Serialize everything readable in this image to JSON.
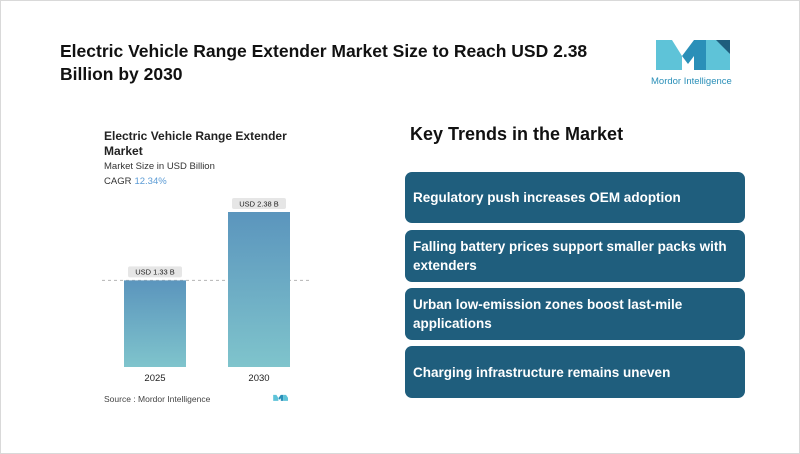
{
  "title": "Electric Vehicle Range Extender Market Size to Reach USD 2.38 Billion by 2030",
  "brand": {
    "name": "Mordor Intelligence",
    "colors": {
      "light": "#5ec3d8",
      "mid": "#2a8fb8",
      "dark": "#1f5e7d"
    }
  },
  "chart_panel": {
    "title": "Electric Vehicle Range Extender Market",
    "subtitle": "Market Size in USD Billion",
    "cagr_label": "CAGR",
    "cagr_value": "12.34%",
    "source": "Source :  Mordor Intelligence"
  },
  "chart_data": {
    "type": "bar",
    "title": "Electric Vehicle Range Extender Market",
    "ylabel": "Market Size in USD Billion",
    "categories": [
      "2025",
      "2030"
    ],
    "values": [
      1.33,
      2.38
    ],
    "data_labels": [
      "USD 1.33 B",
      "USD 2.38 B"
    ],
    "ylim": [
      0,
      2.38
    ],
    "reference_line": 1.33,
    "colors": {
      "top": "#5b95bd",
      "bottom": "#7fc4cc"
    }
  },
  "trends": {
    "heading": "Key Trends in the Market",
    "items": [
      "Regulatory push increases OEM adoption",
      "Falling battery prices support smaller packs with extenders",
      "Urban low-emission zones boost last-mile applications",
      "Charging infrastructure remains uneven"
    ]
  }
}
